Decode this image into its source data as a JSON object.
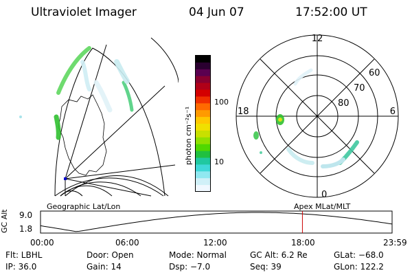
{
  "header": {
    "title": "Ultraviolet Imager",
    "date": "04 Jun 07",
    "time": "17:52:00 UT"
  },
  "geo_panel": {
    "label": "Geographic Lat/Lon"
  },
  "colorbar": {
    "label": "photon cm⁻²s⁻¹",
    "ticks": [
      "100",
      "10"
    ],
    "colors": [
      "#000000",
      "#2a0030",
      "#5a0050",
      "#880030",
      "#b00018",
      "#d40000",
      "#f03000",
      "#ff6a00",
      "#ff9a00",
      "#ffc800",
      "#f0e000",
      "#c8e000",
      "#90e000",
      "#50d800",
      "#20c040",
      "#20c8a0",
      "#40d8d8",
      "#90e8f0",
      "#d0f0f8",
      "#f0f8ff"
    ]
  },
  "polar_panel": {
    "label": "Apex  MLat/MLT",
    "mlt_labels": [
      "12",
      "18",
      "6",
      "0"
    ],
    "lat_labels": [
      "60",
      "70",
      "80"
    ]
  },
  "altitude_plot": {
    "ylabel": "GC Alt",
    "yticks": [
      "9.0",
      "1.8"
    ],
    "xticks": [
      "00:00",
      "06:00",
      "12:00",
      "18:00",
      "23:59"
    ],
    "marker_time": "17:52",
    "marker_color": "#cc0000"
  },
  "info": {
    "filter": "Flt: LBHL",
    "door": "Door: Open",
    "mode": "Mode: Normal",
    "gc_alt": "GC Alt: 6.2 Re",
    "glat": "GLat: −68.0",
    "ip": "IP: 36.0",
    "gain": "Gain: 14",
    "dsp": "Dsp:   −7.0",
    "seq": "Seq: 39",
    "glon": "GLon: 122.2"
  }
}
